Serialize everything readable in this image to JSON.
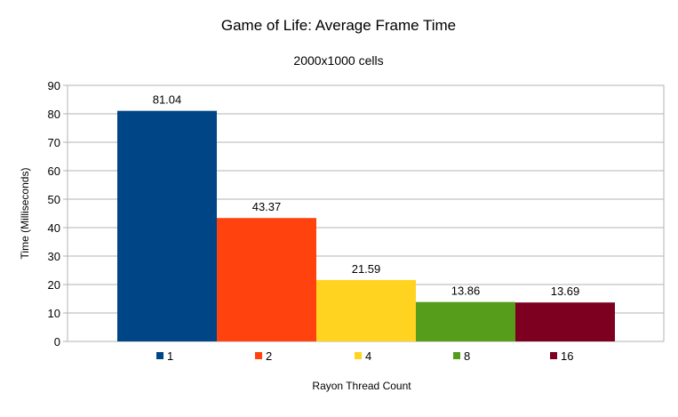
{
  "chart_data": {
    "type": "bar",
    "title": "Game of Life: Average Frame Time",
    "subtitle": "2000x1000 cells",
    "xlabel": "Rayon Thread Count",
    "ylabel": "Time (Milliseconds)",
    "ylim": [
      0,
      90
    ],
    "yticks": [
      0,
      10,
      20,
      30,
      40,
      50,
      60,
      70,
      80,
      90
    ],
    "grid": true,
    "legend_placement": "bottom",
    "series": [
      {
        "name": "1",
        "value": 81.04,
        "label": "81.04",
        "color": "#004586"
      },
      {
        "name": "2",
        "value": 43.37,
        "label": "43.37",
        "color": "#ff420e"
      },
      {
        "name": "4",
        "value": 21.59,
        "label": "21.59",
        "color": "#ffd320"
      },
      {
        "name": "8",
        "value": 13.86,
        "label": "13.86",
        "color": "#579d1c"
      },
      {
        "name": "16",
        "value": 13.69,
        "label": "13.69",
        "color": "#7e0021"
      }
    ]
  }
}
